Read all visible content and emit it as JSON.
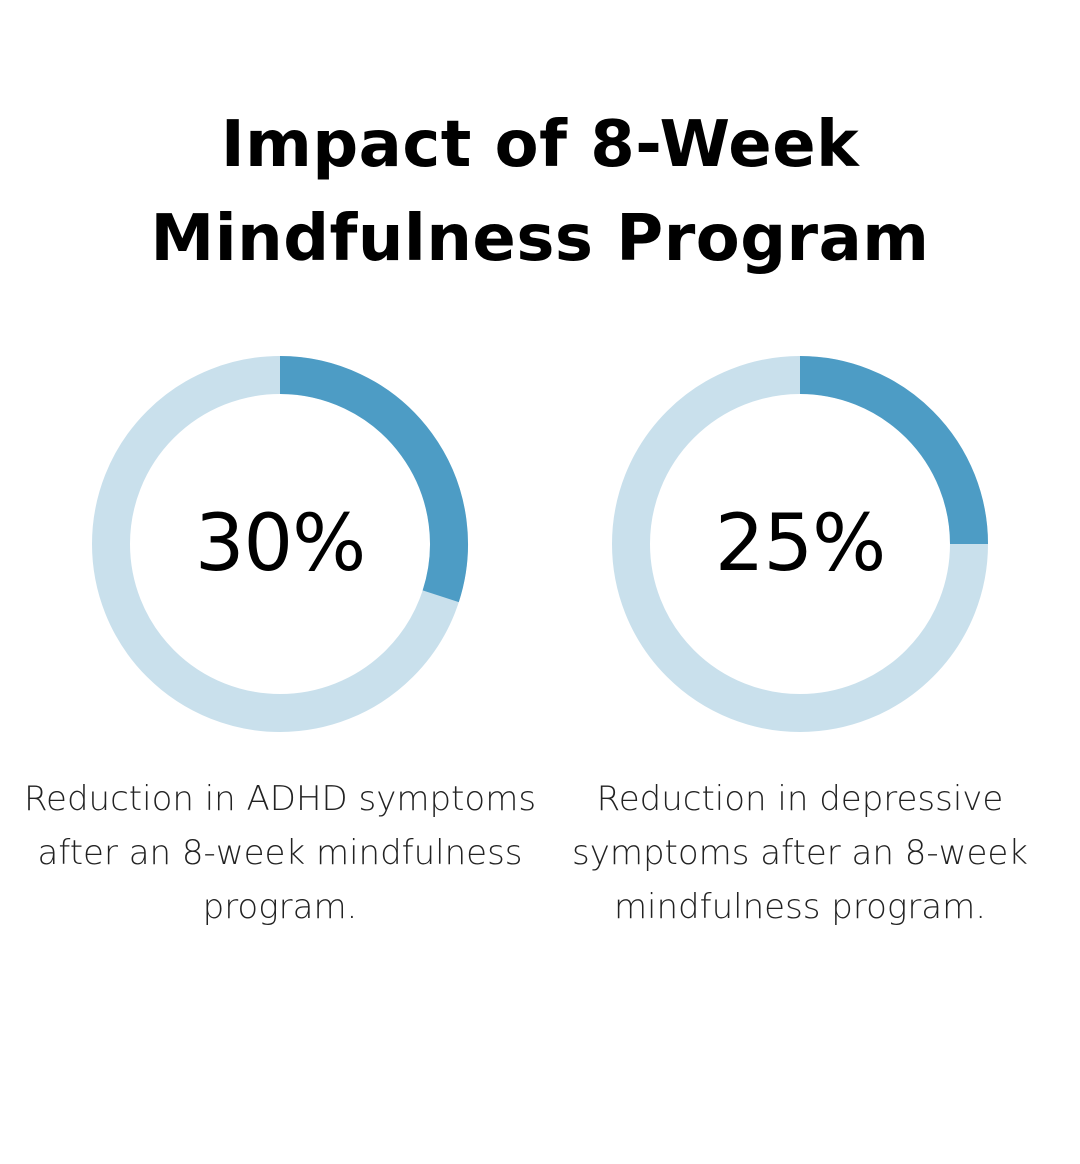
{
  "title_lines": [
    "Impact of 8-Week",
    "Mindfulness Program"
  ],
  "colors": {
    "track": "#c9e0ec",
    "fill": "#4d9cc5",
    "text": "#000000"
  },
  "chart_data": [
    {
      "type": "pie",
      "variant": "donut",
      "value": 30,
      "max": 100,
      "label": "30%",
      "caption": "Reduction in ADHD symptoms after an 8-week mindfulness program."
    },
    {
      "type": "pie",
      "variant": "donut",
      "value": 25,
      "max": 100,
      "label": "25%",
      "caption": "Reduction in depressive symptoms after an 8-week mindfulness program."
    }
  ]
}
